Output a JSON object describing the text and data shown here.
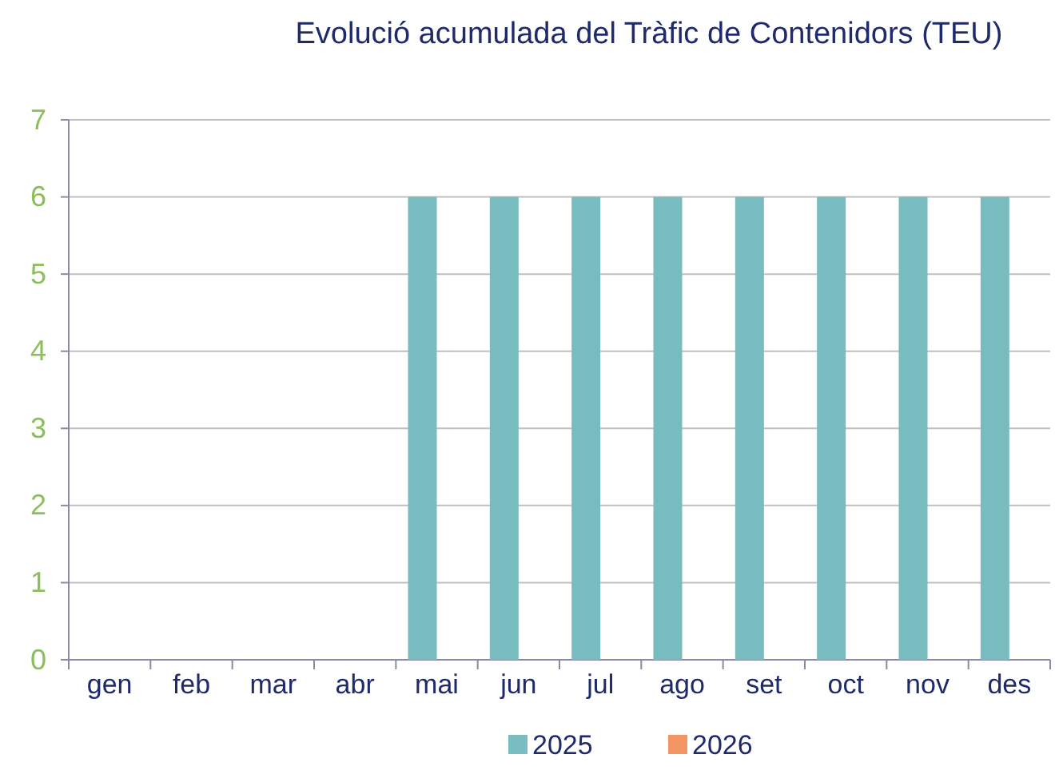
{
  "chart_data": {
    "type": "bar",
    "title": "Evolució acumulada del Tràfic de Contenidors (TEU)",
    "categories": [
      "gen",
      "feb",
      "mar",
      "abr",
      "mai",
      "jun",
      "jul",
      "ago",
      "set",
      "oct",
      "nov",
      "des"
    ],
    "series": [
      {
        "name": "2025",
        "color": "#79bcbf",
        "values": [
          0,
          0,
          0,
          0,
          6,
          6,
          6,
          6,
          6,
          6,
          6,
          6
        ]
      },
      {
        "name": "2026",
        "color": "#f39664",
        "values": [
          null,
          null,
          null,
          null,
          null,
          null,
          null,
          null,
          null,
          null,
          null,
          null
        ]
      }
    ],
    "ylim": [
      0,
      7
    ],
    "yticks": [
      0,
      1,
      2,
      3,
      4,
      5,
      6,
      7
    ],
    "grid": "y",
    "legend": "bottom"
  }
}
